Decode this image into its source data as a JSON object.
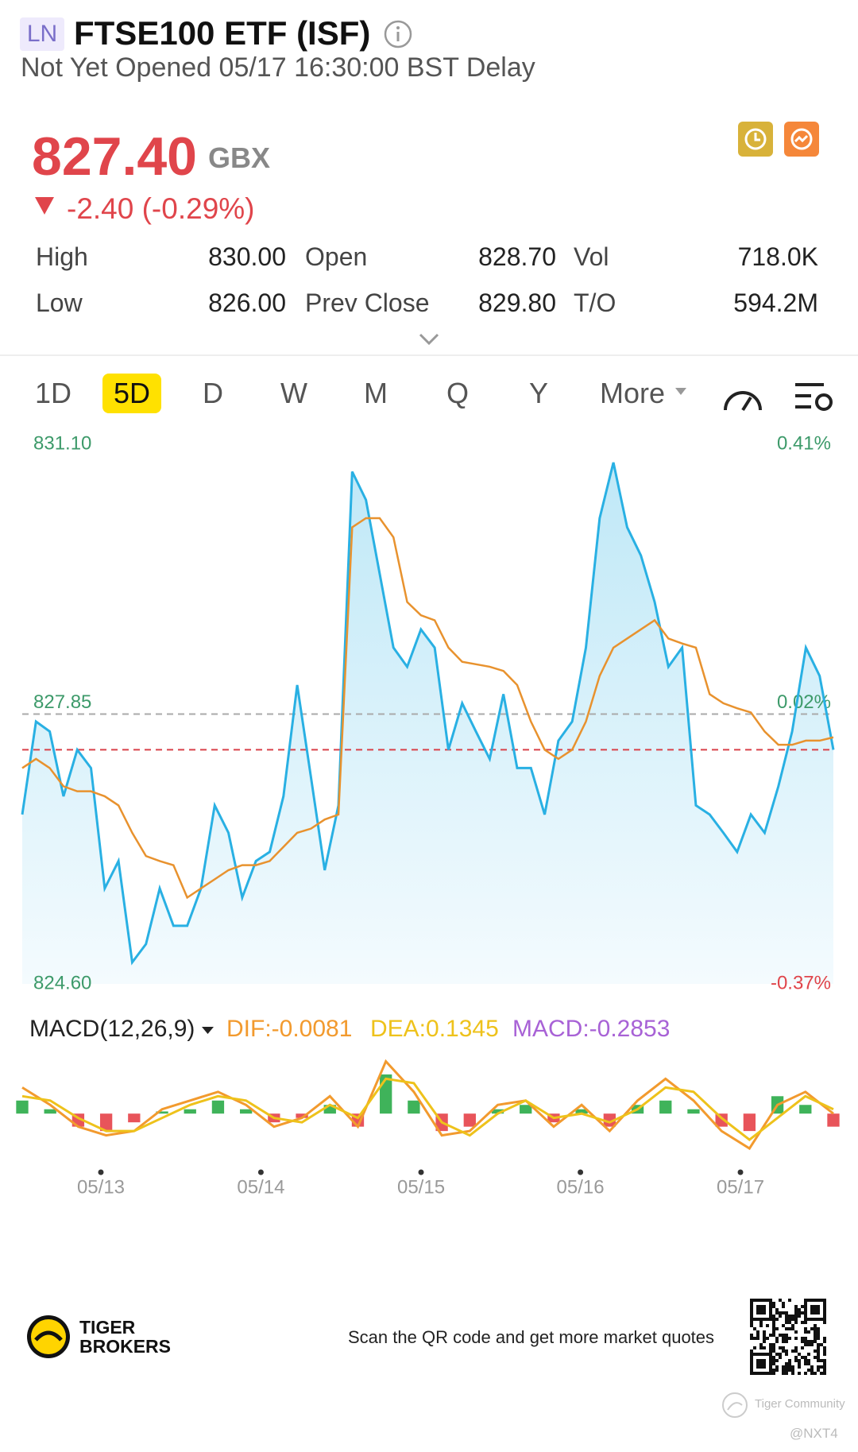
{
  "header": {
    "exchange": "LN",
    "title": "FTSE100 ETF (ISF)",
    "status": "Not Yet Opened 05/17 16:30:00 BST Delay"
  },
  "quote": {
    "price": "827.40",
    "currency": "GBX",
    "change": "-2.40 (-0.29%)",
    "stats": [
      {
        "label": "High",
        "value": "830.00"
      },
      {
        "label": "Open",
        "value": "828.70"
      },
      {
        "label": "Vol",
        "value": "718.0K"
      },
      {
        "label": "Low",
        "value": "826.00"
      },
      {
        "label": "Prev Close",
        "value": "829.80"
      },
      {
        "label": "T/O",
        "value": "594.2M"
      }
    ]
  },
  "tabs": {
    "items": [
      "1D",
      "5D",
      "D",
      "W",
      "M",
      "Q",
      "Y",
      "More"
    ],
    "selected": 1
  },
  "chart_data": [
    {
      "type": "line",
      "xlim": [
        0,
        59
      ],
      "xticks": [
        {
          "value": 5.72,
          "label": "05/13"
        },
        {
          "value": 17.36,
          "label": "05/14"
        },
        {
          "value": 29.01,
          "label": "05/15"
        },
        {
          "value": 40.6,
          "label": "05/16"
        },
        {
          "value": 52.24,
          "label": "05/17"
        }
      ],
      "ylim": [
        824.6,
        831.1
      ],
      "yticks": [
        {
          "value": 824.6,
          "label": "824.60"
        },
        {
          "value": 827.85,
          "label": "827.85"
        },
        {
          "value": 831.1,
          "label": "831.10"
        }
      ],
      "y2lim": [
        -0.37,
        0.41
      ],
      "y2ticks": [
        {
          "value": -0.37,
          "label": "-0.37%"
        },
        {
          "value": 0.02,
          "label": "0.02%"
        },
        {
          "value": 0.41,
          "label": "0.41%"
        }
      ],
      "series": [
        {
          "color": "#29b0e3",
          "values": [
            826.64,
            827.76,
            827.64,
            826.86,
            827.42,
            827.2,
            825.75,
            826.08,
            824.86,
            825.08,
            825.75,
            825.3,
            825.3,
            825.75,
            826.75,
            826.42,
            825.64,
            826.08,
            826.19,
            826.86,
            828.2,
            827.09,
            825.97,
            826.75,
            830.77,
            830.43,
            829.54,
            828.65,
            828.42,
            828.87,
            828.65,
            827.42,
            827.98,
            827.64,
            827.31,
            828.09,
            827.2,
            827.2,
            826.64,
            827.53,
            827.76,
            828.65,
            830.21,
            830.88,
            830.1,
            829.76,
            829.2,
            828.42,
            828.65,
            826.75,
            826.64,
            826.42,
            826.19,
            826.64,
            826.42,
            826.98,
            827.64,
            828.65,
            828.31,
            827.42
          ]
        },
        {
          "color": "#e8922e",
          "values": [
            827.2,
            827.31,
            827.2,
            826.98,
            826.92,
            826.92,
            826.86,
            826.75,
            826.42,
            826.14,
            826.08,
            826.03,
            825.64,
            825.75,
            825.86,
            825.97,
            826.03,
            826.03,
            826.08,
            826.25,
            826.42,
            826.47,
            826.58,
            826.64,
            830.1,
            830.21,
            830.21,
            829.98,
            829.2,
            829.04,
            828.98,
            828.65,
            828.48,
            828.45,
            828.42,
            828.37,
            828.2,
            827.76,
            827.42,
            827.31,
            827.42,
            827.76,
            828.31,
            828.65,
            828.76,
            828.87,
            828.98,
            828.76,
            828.7,
            828.65,
            828.09,
            827.98,
            827.92,
            827.87,
            827.64,
            827.48,
            827.48,
            827.53,
            827.53,
            827.57
          ]
        }
      ]
    },
    {
      "type": "macd",
      "title": "MACD(12,26,9)",
      "ylim": [
        -1,
        1.3
      ],
      "series": [
        {
          "name": "DIF:-0.0081",
          "color": "#f29a2e",
          "values": [
            0.6,
            0.2,
            -0.3,
            -0.5,
            -0.4,
            0.1,
            0.3,
            0.5,
            0.2,
            -0.3,
            -0.1,
            0.4,
            -0.3,
            1.2,
            0.5,
            -0.5,
            -0.4,
            0.2,
            0.3,
            -0.3,
            0.2,
            -0.4,
            0.3,
            0.8,
            0.3,
            -0.4,
            -0.8,
            0.2,
            0.5,
            0.0
          ]
        },
        {
          "name": "DEA:0.1345",
          "color": "#eec21b",
          "values": [
            0.4,
            0.3,
            -0.1,
            -0.4,
            -0.4,
            -0.1,
            0.2,
            0.4,
            0.3,
            -0.1,
            -0.2,
            0.2,
            -0.1,
            0.8,
            0.7,
            -0.2,
            -0.5,
            0.0,
            0.3,
            -0.1,
            0.0,
            -0.2,
            0.1,
            0.6,
            0.5,
            -0.1,
            -0.6,
            -0.1,
            0.4,
            0.1
          ]
        },
        {
          "name": "MACD:-0.2853",
          "color": "#a862d6",
          "up_color": "#3fb35a",
          "down_color": "#e8545a",
          "values": [
            0.3,
            0.1,
            -0.3,
            -0.4,
            -0.2,
            0.05,
            0.1,
            0.3,
            0.1,
            -0.2,
            -0.1,
            0.2,
            -0.3,
            0.9,
            0.3,
            -0.4,
            -0.3,
            0.1,
            0.2,
            -0.2,
            0.1,
            -0.3,
            0.2,
            0.3,
            0.1,
            -0.3,
            -0.4,
            0.4,
            0.2,
            -0.3
          ]
        }
      ]
    }
  ],
  "footer": {
    "brand_top": "TIGER",
    "brand_bottom": "BROKERS",
    "scan": "Scan the QR code and get more market quotes",
    "community": "Tiger Community",
    "handle": "@NXT4"
  }
}
